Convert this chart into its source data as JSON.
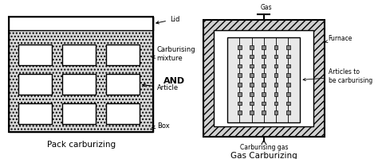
{
  "bg_color": "#f0f0f0",
  "white": "#ffffff",
  "black": "#000000",
  "gray_hatch": "#aaaaaa",
  "title1": "Pack carburizing",
  "title2": "AND",
  "title3": "Gas Carburizing",
  "label_lid": "Lid",
  "label_mixture": "Carburising\nmixture",
  "label_article": "Article",
  "label_box": "Box",
  "label_gas": "Gas",
  "label_furnace": "Furnace",
  "label_articles": "Articles to\nbe carburising",
  "label_carb_gas": "Carburising gas"
}
